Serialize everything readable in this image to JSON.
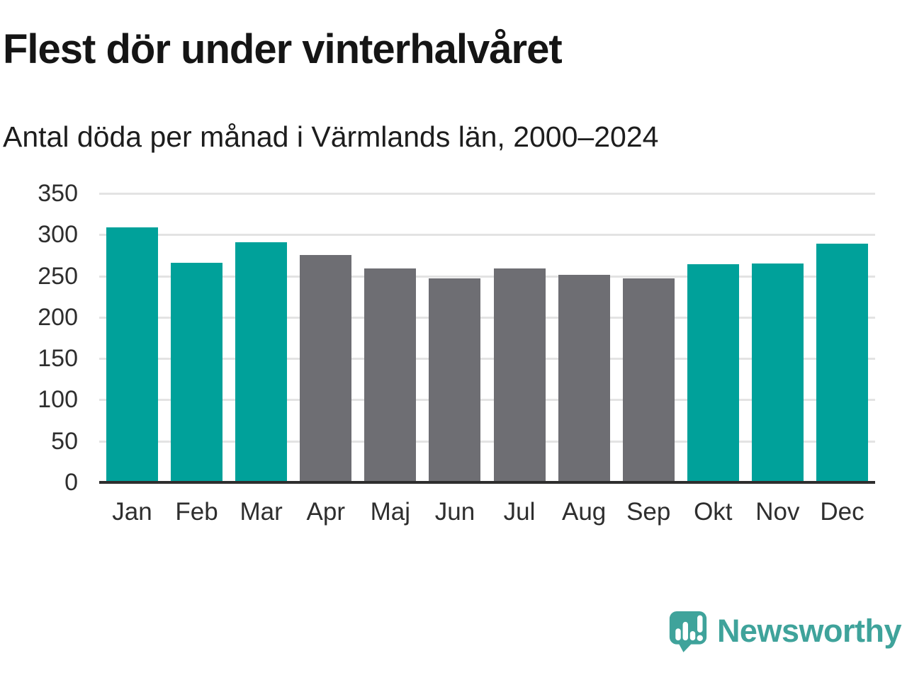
{
  "header": {
    "title": "Flest dör under vinterhalvåret",
    "subtitle": "Antal döda per månad i Värmlands län, 2000–2024"
  },
  "chart_data": {
    "type": "bar",
    "title": "Flest dör under vinterhalvåret",
    "subtitle": "Antal döda per månad i Värmlands län, 2000–2024",
    "categories": [
      "Jan",
      "Feb",
      "Mar",
      "Apr",
      "Maj",
      "Jun",
      "Jul",
      "Aug",
      "Sep",
      "Okt",
      "Nov",
      "Dec"
    ],
    "values": [
      309,
      266,
      291,
      275,
      259,
      247,
      259,
      251,
      247,
      264,
      265,
      289
    ],
    "bar_colors": [
      "#00a19a",
      "#00a19a",
      "#00a19a",
      "#6e6e73",
      "#6e6e73",
      "#6e6e73",
      "#6e6e73",
      "#6e6e73",
      "#6e6e73",
      "#00a19a",
      "#00a19a",
      "#00a19a"
    ],
    "highlight_color": "#00a19a",
    "base_color": "#6e6e73",
    "xlabel": "",
    "ylabel": "",
    "ylim": [
      0,
      350
    ],
    "yticks": [
      0,
      50,
      100,
      150,
      200,
      250,
      300,
      350
    ],
    "grid": true,
    "gridline_color": "#e3e3e3",
    "axis_color": "#2e2e2e",
    "legend": "none"
  },
  "footer": {
    "brand": "Newsworthy",
    "brand_color": "#3fa39b"
  },
  "icons": {
    "logo": "newsworthy-speech-bubble-bar-chart-icon"
  }
}
